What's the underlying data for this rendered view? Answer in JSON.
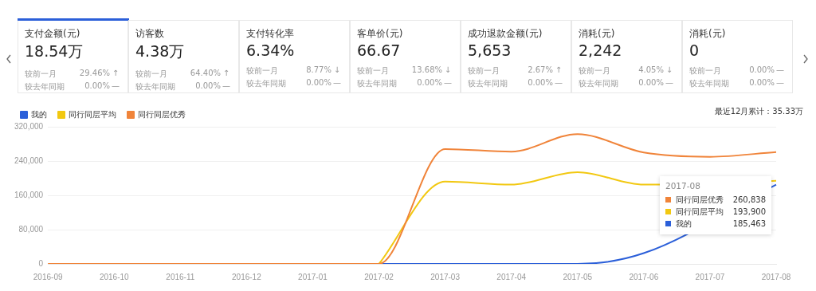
{
  "chart_data": [
    {
      "type": "other",
      "annotations": [
        "支付金额(元)",
        "18.54万",
        "较前一月",
        "29.46%",
        "↑",
        "较去年同期",
        "0.00%",
        "—",
        "访客数",
        "4.38万",
        "较前一月",
        "64.40%",
        "↑",
        "较去年同期",
        "0.00%",
        "—",
        "支付转化率",
        "6.34%",
        "较前一月",
        "8.77%",
        "↓",
        "较去年同期",
        "0.00%",
        "—",
        "客单价(元)",
        "66.67",
        "较前一月",
        "13.68%",
        "↓",
        "较去年同期",
        "0.00%",
        "—",
        "成功退款金额(元)",
        "5,653",
        "较前一月",
        "2.67%",
        "↑",
        "较去年同期",
        "0.00%",
        "—",
        "消耗(元)",
        "2,242",
        "较前一月",
        "4.05%",
        "↓",
        "较去年同期",
        "0.00%",
        "—",
        "消耗(元)",
        "0",
        "较前一月",
        "0.00%",
        "—",
        "较去年同期",
        "0.00%",
        "—"
      ]
    },
    {
      "type": "line",
      "categories": [
        "2016-09",
        "2016-10",
        "2016-11",
        "2016-12",
        "2017-01",
        "2017-02",
        "2017-03",
        "2017-04",
        "2017-05",
        "2017-06",
        "2017-07",
        "2017-08"
      ],
      "series": [
        {
          "name": "我的",
          "color": "#2b5fd9",
          "values": [
            null,
            null,
            null,
            null,
            null,
            0,
            0,
            0,
            0,
            25000,
            null,
            185000
          ]
        },
        {
          "name": "同行同层平均",
          "color": "#f2c811",
          "values": [
            null,
            null,
            null,
            null,
            null,
            0,
            192000,
            185000,
            214000,
            185000,
            null,
            194000
          ]
        },
        {
          "name": "同行同层优秀",
          "color": "#f0843a",
          "values": [
            0,
            0,
            0,
            0,
            0,
            0,
            268000,
            262000,
            303000,
            260000,
            250000,
            261000
          ]
        }
      ],
      "ylim": [
        0,
        320000
      ],
      "yticks": [
        {
          "value": 0,
          "label": "0"
        },
        {
          "value": 80000,
          "label": "80,000"
        },
        {
          "value": 160000,
          "label": "160,000"
        },
        {
          "value": 240000,
          "label": "240,000"
        },
        {
          "value": 320000,
          "label": "320,000"
        }
      ],
      "grid": "y",
      "legend": "top left",
      "marker": "none",
      "annotations": [
        "最近12月累计：35.33万",
        "2017-08",
        "同行同层优秀",
        "260,838",
        "同行同层平均",
        "193,900",
        "我的",
        "185,463"
      ]
    }
  ]
}
